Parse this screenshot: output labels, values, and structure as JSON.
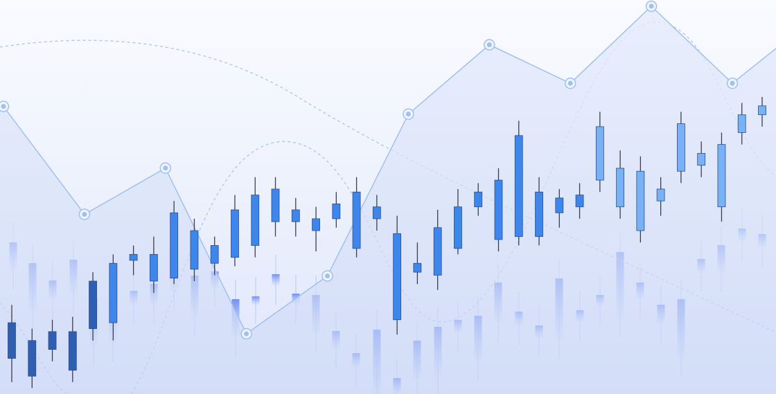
{
  "colors": {
    "accent": "#3b82f6",
    "candle_dark": "#2f5fb3",
    "candle_mid": "#3d86ec",
    "candle_light": "#78b1f4",
    "line": "#9fc1f0",
    "dashed": "#a9c4ee",
    "area": "#dbe5fa"
  },
  "chart_data": [
    {
      "type": "line",
      "title": "",
      "xlabel": "",
      "ylabel": "",
      "ylim": [
        0,
        100
      ],
      "grid": false,
      "legend": "none",
      "area_fill": true,
      "x": [
        0,
        1,
        2,
        3,
        4,
        5,
        6,
        7,
        8,
        9
      ],
      "series": [
        {
          "values": [
            74,
            46,
            58,
            15,
            30,
            72,
            90,
            80,
            100,
            80
          ]
        }
      ]
    },
    {
      "type": "candlestick",
      "title": "",
      "xlabel": "",
      "ylabel": "",
      "ylim": [
        0,
        100
      ],
      "grid": false,
      "legend": "none",
      "series": [
        {
          "candles": [
            {
              "o": 24,
              "c": 12,
              "h": 30,
              "l": 4
            },
            {
              "o": 18,
              "c": 6,
              "h": 22,
              "l": 2
            },
            {
              "o": 21,
              "c": 15,
              "h": 25,
              "l": 11
            },
            {
              "o": 21,
              "c": 8,
              "h": 26,
              "l": 4
            },
            {
              "o": 38,
              "c": 22,
              "h": 41,
              "l": 18
            },
            {
              "o": 44,
              "c": 24,
              "h": 47,
              "l": 18
            },
            {
              "o": 47,
              "c": 45,
              "h": 50,
              "l": 40
            },
            {
              "o": 47,
              "c": 38,
              "h": 53,
              "l": 34
            },
            {
              "o": 61,
              "c": 39,
              "h": 65,
              "l": 37
            },
            {
              "o": 55,
              "c": 42,
              "h": 59,
              "l": 38
            },
            {
              "o": 50,
              "c": 44,
              "h": 53,
              "l": 40
            },
            {
              "o": 62,
              "c": 46,
              "h": 67,
              "l": 43
            },
            {
              "o": 67,
              "c": 50,
              "h": 73,
              "l": 46
            },
            {
              "o": 69,
              "c": 58,
              "h": 73,
              "l": 53
            },
            {
              "o": 62,
              "c": 58,
              "h": 66,
              "l": 53
            },
            {
              "o": 59,
              "c": 55,
              "h": 63,
              "l": 48
            },
            {
              "o": 64,
              "c": 59,
              "h": 68,
              "l": 56
            },
            {
              "o": 68,
              "c": 49,
              "h": 73,
              "l": 46
            },
            {
              "o": 63,
              "c": 59,
              "h": 67,
              "l": 55
            },
            {
              "o": 54,
              "c": 25,
              "h": 60,
              "l": 20
            },
            {
              "o": 44,
              "c": 41,
              "h": 51,
              "l": 37
            },
            {
              "o": 56,
              "c": 40,
              "h": 62,
              "l": 35
            },
            {
              "o": 63,
              "c": 49,
              "h": 69,
              "l": 47
            },
            {
              "o": 68,
              "c": 63,
              "h": 71,
              "l": 60
            },
            {
              "o": 72,
              "c": 52,
              "h": 76,
              "l": 48
            },
            {
              "o": 87,
              "c": 53,
              "h": 92,
              "l": 50
            },
            {
              "o": 68,
              "c": 53,
              "h": 73,
              "l": 50
            },
            {
              "o": 66,
              "c": 61,
              "h": 69,
              "l": 56
            },
            {
              "o": 67,
              "c": 63,
              "h": 71,
              "l": 59
            },
            {
              "o": 90,
              "c": 72,
              "h": 95,
              "l": 68
            },
            {
              "o": 76,
              "c": 63,
              "h": 82,
              "l": 59
            },
            {
              "o": 75,
              "c": 55,
              "h": 80,
              "l": 51
            },
            {
              "o": 69,
              "c": 65,
              "h": 73,
              "l": 60
            },
            {
              "o": 91,
              "c": 75,
              "h": 95,
              "l": 71
            },
            {
              "o": 81,
              "c": 77,
              "h": 85,
              "l": 73
            },
            {
              "o": 84,
              "c": 63,
              "h": 88,
              "l": 58
            },
            {
              "o": 94,
              "c": 88,
              "h": 98,
              "l": 84
            },
            {
              "o": 97,
              "c": 94,
              "h": 100,
              "l": 90
            }
          ]
        }
      ]
    }
  ]
}
